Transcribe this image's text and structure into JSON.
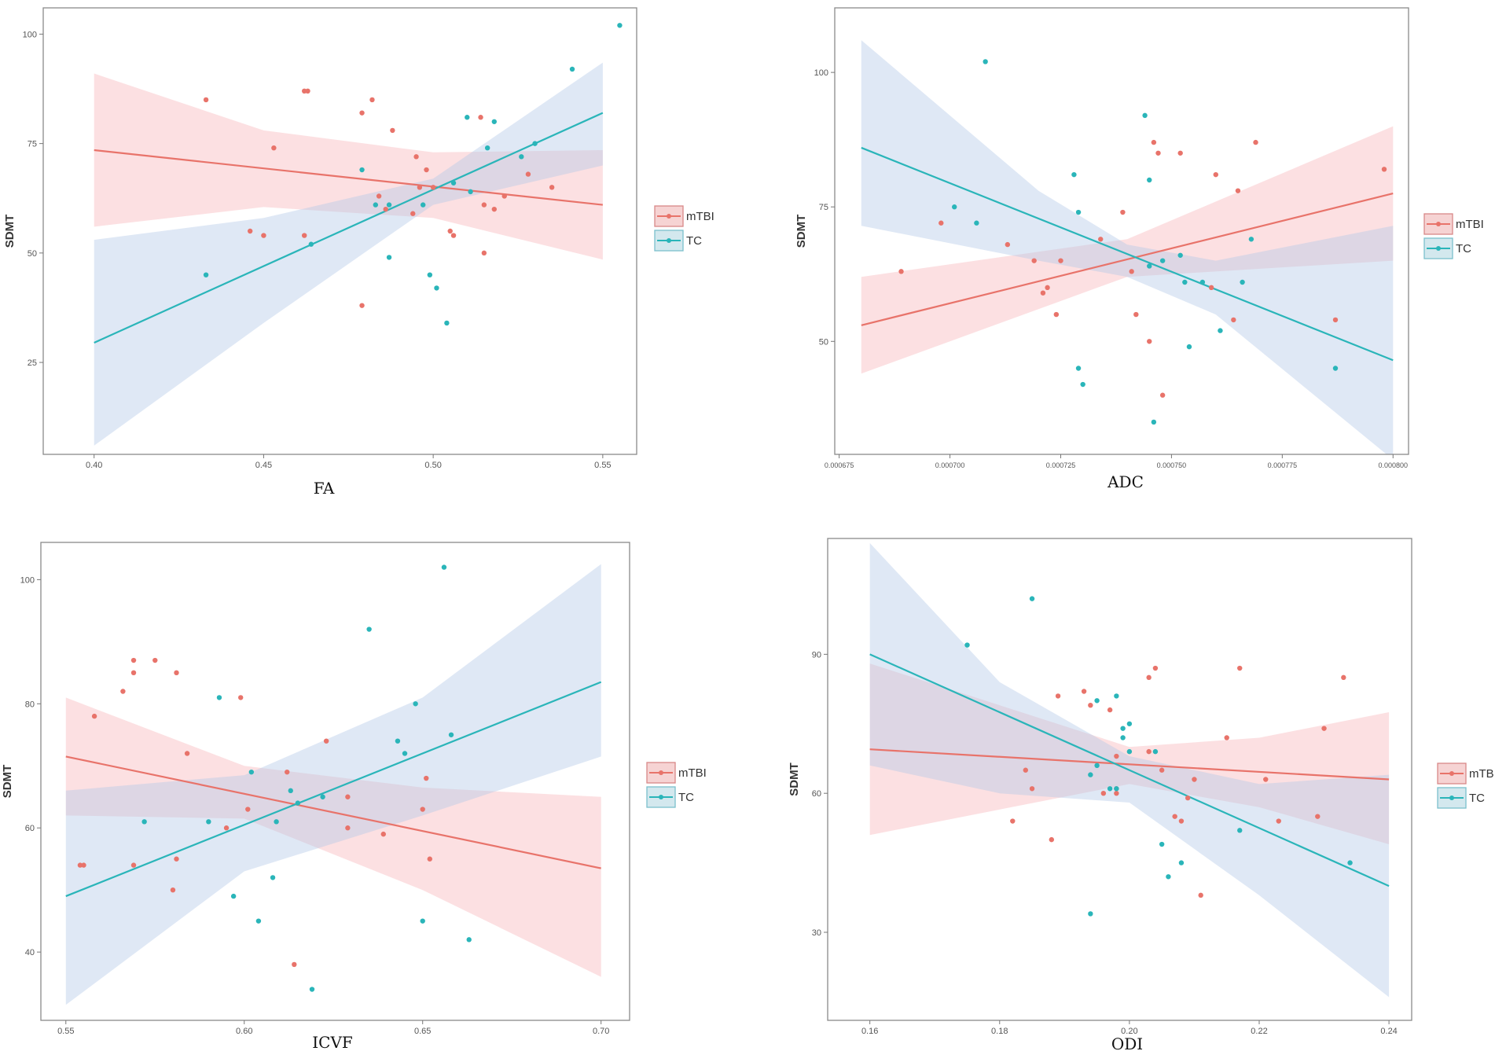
{
  "colors": {
    "mtbi": "#e8736a",
    "tc": "#2ab5b9",
    "mtbi_band": "#f7b5bb",
    "tc_band": "#b3c8e6"
  },
  "chart_data": [
    {
      "type": "scatter",
      "caption": "FA",
      "ylabel": "SDMT",
      "xlim": [
        0.385,
        0.56
      ],
      "ylim": [
        4,
        106
      ],
      "xticks": [
        0.4,
        0.45,
        0.5,
        0.55
      ],
      "xtick_labels": [
        "0.40",
        "0.45",
        "0.50",
        "0.55"
      ],
      "yticks": [
        25,
        50,
        75,
        100
      ],
      "ytick_labels": [
        "25",
        "50",
        "75",
        "100"
      ],
      "legend": [
        "mTBI",
        "TC"
      ],
      "series": [
        {
          "name": "mTBI",
          "fit": {
            "x": [
              0.4,
              0.55
            ],
            "y": [
              73.5,
              61
            ]
          },
          "band": {
            "x": [
              0.4,
              0.45,
              0.5,
              0.55
            ],
            "upper": [
              91,
              78,
              73,
              73.5
            ],
            "lower": [
              56,
              60.5,
              58,
              48.5
            ]
          },
          "points": [
            [
              0.433,
              85
            ],
            [
              0.453,
              74
            ],
            [
              0.446,
              55
            ],
            [
              0.45,
              54
            ],
            [
              0.462,
              87
            ],
            [
              0.463,
              87
            ],
            [
              0.462,
              54
            ],
            [
              0.479,
              82
            ],
            [
              0.482,
              85
            ],
            [
              0.479,
              38
            ],
            [
              0.484,
              63
            ],
            [
              0.486,
              60
            ],
            [
              0.488,
              78
            ],
            [
              0.495,
              72
            ],
            [
              0.494,
              59
            ],
            [
              0.498,
              69
            ],
            [
              0.496,
              65
            ],
            [
              0.5,
              65
            ],
            [
              0.505,
              55
            ],
            [
              0.506,
              54
            ],
            [
              0.514,
              81
            ],
            [
              0.515,
              61
            ],
            [
              0.515,
              50
            ],
            [
              0.518,
              60
            ],
            [
              0.521,
              63
            ],
            [
              0.528,
              68
            ],
            [
              0.535,
              65
            ]
          ]
        },
        {
          "name": "TC",
          "fit": {
            "x": [
              0.4,
              0.55
            ],
            "y": [
              29.5,
              82
            ]
          },
          "band": {
            "x": [
              0.4,
              0.45,
              0.5,
              0.55
            ],
            "upper": [
              53,
              58,
              67,
              93.5
            ],
            "lower": [
              6,
              34,
              61,
              70
            ]
          },
          "points": [
            [
              0.433,
              45
            ],
            [
              0.464,
              52
            ],
            [
              0.479,
              69
            ],
            [
              0.483,
              61
            ],
            [
              0.487,
              61
            ],
            [
              0.487,
              49
            ],
            [
              0.497,
              61
            ],
            [
              0.499,
              45
            ],
            [
              0.501,
              42
            ],
            [
              0.504,
              34
            ],
            [
              0.506,
              66
            ],
            [
              0.51,
              81
            ],
            [
              0.511,
              64
            ],
            [
              0.516,
              74
            ],
            [
              0.518,
              80
            ],
            [
              0.526,
              72
            ],
            [
              0.53,
              75
            ],
            [
              0.541,
              92
            ],
            [
              0.555,
              102
            ]
          ]
        }
      ]
    },
    {
      "type": "scatter",
      "caption": "ADC",
      "ylabel": "SDMT",
      "xlim": [
        0.000674,
        0.0008035
      ],
      "ylim": [
        29,
        112
      ],
      "xticks": [
        0.000675,
        0.0007,
        0.000725,
        0.00075,
        0.000775,
        0.0008
      ],
      "xtick_labels": [
        "0.000675",
        "0.000700",
        "0.000725",
        "0.000750",
        "0.000775",
        "0.000800"
      ],
      "yticks": [
        50,
        75,
        100
      ],
      "ytick_labels": [
        "50",
        "75",
        "100"
      ],
      "legend": [
        "mTBI",
        "TC"
      ],
      "series": [
        {
          "name": "mTBI",
          "fit": {
            "x": [
              0.00068,
              0.0008
            ],
            "y": [
              53,
              77.5
            ]
          },
          "band": {
            "x": [
              0.00068,
              0.00074,
              0.0008
            ],
            "upper": [
              62,
              69,
              90
            ],
            "lower": [
              44,
              62,
              65
            ]
          },
          "points": [
            [
              0.000689,
              63
            ],
            [
              0.000698,
              72
            ],
            [
              0.000713,
              68
            ],
            [
              0.000719,
              65
            ],
            [
              0.000721,
              59
            ],
            [
              0.000722,
              60
            ],
            [
              0.000724,
              55
            ],
            [
              0.000725,
              65
            ],
            [
              0.000734,
              69
            ],
            [
              0.000739,
              74
            ],
            [
              0.000741,
              63
            ],
            [
              0.000742,
              55
            ],
            [
              0.000745,
              50
            ],
            [
              0.000746,
              87
            ],
            [
              0.000747,
              85
            ],
            [
              0.000748,
              40
            ],
            [
              0.000752,
              85
            ],
            [
              0.000759,
              60
            ],
            [
              0.00076,
              81
            ],
            [
              0.000764,
              54
            ],
            [
              0.000765,
              78
            ],
            [
              0.000769,
              87
            ],
            [
              0.000787,
              54
            ],
            [
              0.000798,
              82
            ]
          ]
        },
        {
          "name": "TC",
          "fit": {
            "x": [
              0.00068,
              0.0008
            ],
            "y": [
              86,
              46.5
            ]
          },
          "band": {
            "x": [
              0.00068,
              0.00072,
              0.00074,
              0.00076,
              0.0008
            ],
            "upper": [
              106,
              78,
              68,
              65,
              71.5
            ],
            "lower": [
              71.5,
              65,
              62,
              55,
              28
            ]
          },
          "points": [
            [
              0.000701,
              75
            ],
            [
              0.000706,
              72
            ],
            [
              0.000708,
              102
            ],
            [
              0.000728,
              81
            ],
            [
              0.000729,
              74
            ],
            [
              0.000729,
              45
            ],
            [
              0.00073,
              42
            ],
            [
              0.000744,
              92
            ],
            [
              0.000745,
              80
            ],
            [
              0.000745,
              64
            ],
            [
              0.000746,
              35
            ],
            [
              0.000748,
              65
            ],
            [
              0.000752,
              66
            ],
            [
              0.000753,
              61
            ],
            [
              0.000754,
              49
            ],
            [
              0.000757,
              61
            ],
            [
              0.000761,
              52
            ],
            [
              0.000766,
              61
            ],
            [
              0.000768,
              69
            ],
            [
              0.000787,
              45
            ]
          ]
        }
      ]
    },
    {
      "type": "scatter",
      "caption": "ICVF",
      "ylabel": "SDMT",
      "xlim": [
        0.543,
        0.708
      ],
      "ylim": [
        29,
        106
      ],
      "xticks": [
        0.55,
        0.6,
        0.65,
        0.7
      ],
      "xtick_labels": [
        "0.55",
        "0.60",
        "0.65",
        "0.70"
      ],
      "yticks": [
        40,
        60,
        80,
        100
      ],
      "ytick_labels": [
        "40",
        "60",
        "80",
        "100"
      ],
      "legend": [
        "mTBI",
        "TC"
      ],
      "series": [
        {
          "name": "mTBI",
          "fit": {
            "x": [
              0.55,
              0.7
            ],
            "y": [
              71.5,
              53.5
            ]
          },
          "band": {
            "x": [
              0.55,
              0.6,
              0.65,
              0.7
            ],
            "upper": [
              81,
              70,
              66.5,
              65
            ],
            "lower": [
              62,
              61.5,
              50,
              36
            ]
          },
          "points": [
            [
              0.554,
              54
            ],
            [
              0.555,
              54
            ],
            [
              0.558,
              78
            ],
            [
              0.566,
              82
            ],
            [
              0.569,
              87
            ],
            [
              0.569,
              85
            ],
            [
              0.569,
              54
            ],
            [
              0.575,
              87
            ],
            [
              0.58,
              50
            ],
            [
              0.581,
              85
            ],
            [
              0.581,
              55
            ],
            [
              0.584,
              72
            ],
            [
              0.595,
              60
            ],
            [
              0.599,
              81
            ],
            [
              0.601,
              63
            ],
            [
              0.612,
              69
            ],
            [
              0.614,
              38
            ],
            [
              0.623,
              74
            ],
            [
              0.629,
              65
            ],
            [
              0.629,
              60
            ],
            [
              0.639,
              59
            ],
            [
              0.65,
              63
            ],
            [
              0.651,
              68
            ],
            [
              0.652,
              55
            ]
          ]
        },
        {
          "name": "TC",
          "fit": {
            "x": [
              0.55,
              0.7
            ],
            "y": [
              49,
              83.5
            ]
          },
          "band": {
            "x": [
              0.55,
              0.6,
              0.65,
              0.7
            ],
            "upper": [
              66,
              68.5,
              81,
              102.5
            ],
            "lower": [
              31.5,
              53,
              62,
              71.5
            ]
          },
          "points": [
            [
              0.572,
              61
            ],
            [
              0.59,
              61
            ],
            [
              0.593,
              81
            ],
            [
              0.597,
              49
            ],
            [
              0.602,
              69
            ],
            [
              0.604,
              45
            ],
            [
              0.608,
              52
            ],
            [
              0.609,
              61
            ],
            [
              0.613,
              66
            ],
            [
              0.615,
              64
            ],
            [
              0.619,
              34
            ],
            [
              0.622,
              65
            ],
            [
              0.635,
              92
            ],
            [
              0.643,
              74
            ],
            [
              0.645,
              72
            ],
            [
              0.648,
              80
            ],
            [
              0.65,
              45
            ],
            [
              0.656,
              102
            ],
            [
              0.658,
              75
            ],
            [
              0.663,
              42
            ]
          ]
        }
      ]
    },
    {
      "type": "scatter",
      "caption": "ODI",
      "ylabel": "SDMT",
      "xlim": [
        0.1535,
        0.2435
      ],
      "ylim": [
        11,
        115
      ],
      "xticks": [
        0.16,
        0.18,
        0.2,
        0.22,
        0.24
      ],
      "xtick_labels": [
        "0.16",
        "0.18",
        "0.20",
        "0.22",
        "0.24"
      ],
      "yticks": [
        30,
        60,
        90
      ],
      "ytick_labels": [
        "30",
        "60",
        "90"
      ],
      "legend": [
        "mTBI",
        "TC"
      ],
      "series": [
        {
          "name": "mTBI",
          "fit": {
            "x": [
              0.16,
              0.24
            ],
            "y": [
              69.5,
              63
            ]
          },
          "band": {
            "x": [
              0.16,
              0.2,
              0.22,
              0.24
            ],
            "upper": [
              88,
              70,
              72,
              77.5
            ],
            "lower": [
              51,
              62,
              57,
              49
            ]
          },
          "points": [
            [
              0.182,
              54
            ],
            [
              0.184,
              65
            ],
            [
              0.185,
              61
            ],
            [
              0.188,
              50
            ],
            [
              0.189,
              81
            ],
            [
              0.193,
              82
            ],
            [
              0.194,
              79
            ],
            [
              0.196,
              60
            ],
            [
              0.197,
              78
            ],
            [
              0.198,
              68
            ],
            [
              0.198,
              61
            ],
            [
              0.198,
              60
            ],
            [
              0.203,
              69
            ],
            [
              0.203,
              85
            ],
            [
              0.204,
              87
            ],
            [
              0.205,
              65
            ],
            [
              0.207,
              55
            ],
            [
              0.208,
              54
            ],
            [
              0.209,
              59
            ],
            [
              0.21,
              63
            ],
            [
              0.211,
              38
            ],
            [
              0.215,
              72
            ],
            [
              0.217,
              87
            ],
            [
              0.221,
              63
            ],
            [
              0.223,
              54
            ],
            [
              0.229,
              55
            ],
            [
              0.23,
              74
            ],
            [
              0.233,
              85
            ]
          ]
        },
        {
          "name": "TC",
          "fit": {
            "x": [
              0.16,
              0.24
            ],
            "y": [
              90,
              40
            ]
          },
          "band": {
            "x": [
              0.16,
              0.18,
              0.2,
              0.22,
              0.24
            ],
            "upper": [
              114,
              84,
              68,
              62,
              64
            ],
            "lower": [
              66,
              60,
              58,
              38,
              16
            ]
          },
          "points": [
            [
              0.175,
              92
            ],
            [
              0.185,
              102
            ],
            [
              0.194,
              64
            ],
            [
              0.194,
              34
            ],
            [
              0.195,
              66
            ],
            [
              0.195,
              80
            ],
            [
              0.197,
              61
            ],
            [
              0.198,
              61
            ],
            [
              0.198,
              81
            ],
            [
              0.199,
              72
            ],
            [
              0.199,
              74
            ],
            [
              0.2,
              75
            ],
            [
              0.2,
              69
            ],
            [
              0.204,
              69
            ],
            [
              0.205,
              49
            ],
            [
              0.206,
              42
            ],
            [
              0.208,
              45
            ],
            [
              0.217,
              52
            ],
            [
              0.234,
              45
            ]
          ]
        }
      ]
    }
  ]
}
